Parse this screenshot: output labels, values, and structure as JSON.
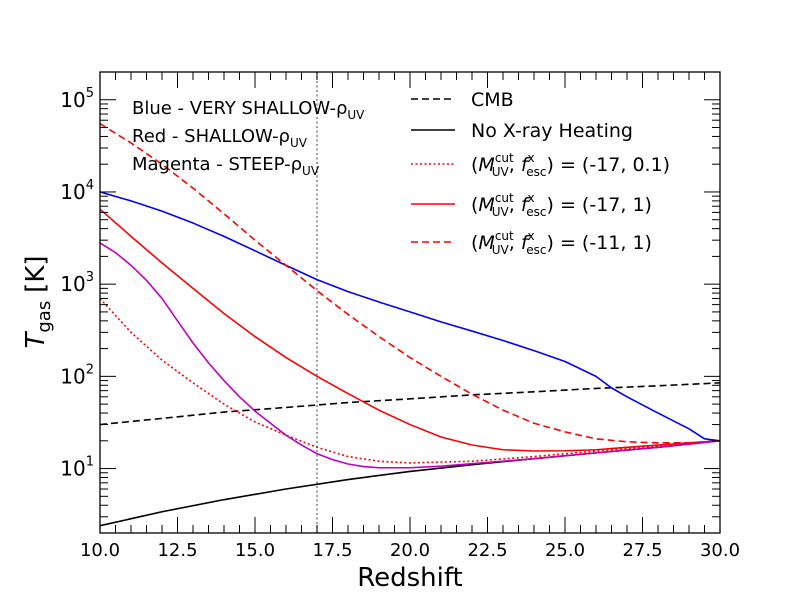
{
  "chart_data": {
    "type": "line",
    "xlabel": "Redshift",
    "ylabel": "T_gas [K]",
    "ylabel_main": "T",
    "ylabel_sub": "gas",
    "ylabel_unit": "[K]",
    "xlim": [
      10,
      30
    ],
    "ylim": [
      2,
      200000
    ],
    "yscale": "log",
    "grid": false,
    "x_ticks": [
      "10.0",
      "12.5",
      "15.0",
      "17.5",
      "20.0",
      "22.5",
      "25.0",
      "27.5",
      "30.0"
    ],
    "y_ticks": [
      {
        "base": "10",
        "exp": "1"
      },
      {
        "base": "10",
        "exp": "2"
      },
      {
        "base": "10",
        "exp": "3"
      },
      {
        "base": "10",
        "exp": "4"
      },
      {
        "base": "10",
        "exp": "5"
      }
    ],
    "vline": {
      "x": 17,
      "color": "#808080",
      "style": "dotted"
    },
    "annotations": [
      {
        "main": "Blue - VERY SHALLOW-ρ",
        "sub": "UV"
      },
      {
        "main": "Red - SHALLOW-ρ",
        "sub": "UV"
      },
      {
        "main": "Magenta - STEEP-ρ",
        "sub": "UV"
      }
    ],
    "legend_position": "top-right",
    "legend": [
      {
        "label": "CMB",
        "color": "#000000",
        "style": "dashed"
      },
      {
        "label": "No X-ray Heating",
        "color": "#000000",
        "style": "solid"
      },
      {
        "label": "(M_UV^cut, f_esc^x) = (-17, 0.1)",
        "color": "#ff0000",
        "style": "dotted"
      },
      {
        "label": "(M_UV^cut, f_esc^x) = (-17, 1)",
        "color": "#ff0000",
        "style": "solid"
      },
      {
        "label": "(M_UV^cut, f_esc^x) = (-11, 1)",
        "color": "#ff0000",
        "style": "dashed"
      }
    ],
    "legend_math": {
      "m": "M",
      "m_sup": "cut",
      "m_sub": "UV",
      "f": "f",
      "f_sup": "x",
      "f_sub": "esc",
      "lp": "(",
      "comma": ", ",
      "eq": ") = "
    },
    "legend_values": [
      "(-17, 0.1)",
      "(-17, 1)",
      "(-11, 1)"
    ],
    "series": [
      {
        "color": "#000000",
        "style": "dashed",
        "x": [
          10,
          12,
          14,
          16,
          18,
          20,
          22,
          24,
          26,
          28,
          30
        ],
        "y": [
          30,
          35,
          41,
          46,
          52,
          57,
          63,
          68,
          74,
          79,
          85
        ]
      },
      {
        "color": "#000000",
        "style": "solid",
        "x": [
          10,
          12,
          14,
          16,
          18,
          20,
          22,
          24,
          26,
          28,
          30
        ],
        "y": [
          2.4,
          3.4,
          4.6,
          6,
          7.6,
          9.3,
          11,
          12.8,
          14.8,
          17,
          20
        ]
      },
      {
        "color": "#0000ff",
        "style": "solid",
        "x": [
          10,
          11,
          12,
          13,
          14,
          15,
          16,
          17,
          18,
          19,
          20,
          21,
          22,
          23,
          24,
          25,
          26,
          26.5,
          27,
          28,
          29,
          29.5,
          30
        ],
        "y": [
          10000,
          8000,
          6200,
          4600,
          3300,
          2300,
          1600,
          1120,
          830,
          640,
          500,
          390,
          310,
          245,
          190,
          145,
          100,
          75,
          60,
          40,
          27,
          21,
          20
        ]
      },
      {
        "color": "#ff0000",
        "style": "dashed",
        "x": [
          10,
          11,
          12,
          13,
          14,
          15,
          16,
          17,
          18,
          19,
          20,
          21,
          22,
          23,
          24,
          25,
          26,
          27,
          28,
          29,
          30
        ],
        "y": [
          55000,
          34000,
          20000,
          11000,
          5800,
          3000,
          1600,
          850,
          470,
          270,
          160,
          100,
          64,
          43,
          31,
          25,
          21,
          19.5,
          19,
          19,
          20
        ]
      },
      {
        "color": "#ff0000",
        "style": "solid",
        "x": [
          10,
          11,
          12,
          13,
          14,
          15,
          16,
          17,
          18,
          19,
          20,
          21,
          22,
          23,
          24,
          25,
          26,
          27,
          28,
          29,
          30
        ],
        "y": [
          6500,
          3300,
          1700,
          900,
          480,
          270,
          160,
          100,
          65,
          43,
          30,
          22,
          18,
          16,
          15.5,
          15.6,
          16,
          17,
          18,
          19,
          20
        ]
      },
      {
        "color": "#ff0000",
        "style": "dotted",
        "x": [
          10,
          11,
          12,
          13,
          14,
          15,
          16,
          17,
          18,
          19,
          20,
          22,
          24,
          26,
          28,
          30
        ],
        "y": [
          700,
          300,
          150,
          85,
          50,
          32,
          23,
          17,
          13.5,
          12,
          11.5,
          12,
          13.5,
          15.5,
          17.5,
          20
        ]
      },
      {
        "color": "#c000c0",
        "style": "solid",
        "x": [
          10,
          10.5,
          11,
          11.5,
          12,
          12.5,
          13,
          13.5,
          14,
          14.5,
          15,
          15.5,
          16,
          16.5,
          17,
          17.5,
          18,
          18.5,
          19,
          20,
          21,
          22,
          24,
          26,
          28,
          30
        ],
        "y": [
          2800,
          2200,
          1600,
          1100,
          700,
          400,
          230,
          140,
          90,
          60,
          42,
          31,
          23,
          18,
          14.5,
          12.5,
          11.2,
          10.5,
          10.2,
          10.2,
          10.6,
          11.3,
          12.8,
          14.8,
          17,
          20
        ]
      }
    ]
  }
}
